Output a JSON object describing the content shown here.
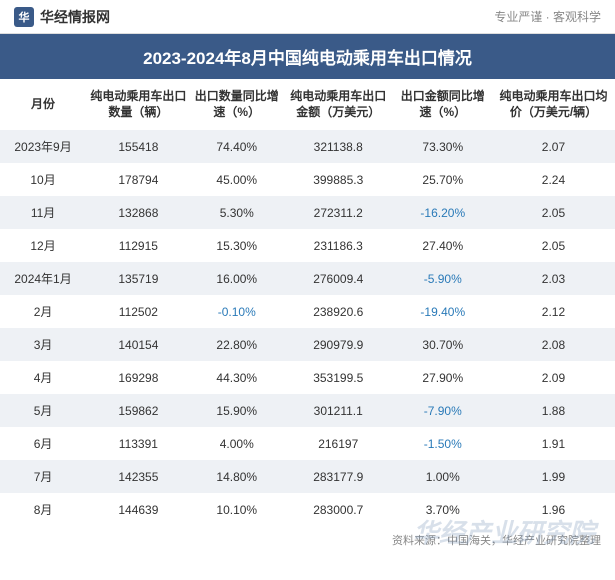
{
  "header": {
    "logo_char": "华",
    "logo_text": "华经情报网",
    "tagline": "专业严谨 · 客观科学"
  },
  "title": "2023-2024年8月中国纯电动乘用车出口情况",
  "table": {
    "columns": [
      "月份",
      "纯电动乘用车出口数量（辆）",
      "出口数量同比增速（%）",
      "纯电动乘用车出口金额（万美元）",
      "出口金额同比增速（%）",
      "纯电动乘用车出口均价（万美元/辆）"
    ],
    "rows": [
      {
        "month": "2023年9月",
        "qty": "155418",
        "qty_yoy": "74.40%",
        "qty_yoy_neg": false,
        "amt": "321138.8",
        "amt_yoy": "73.30%",
        "amt_yoy_neg": false,
        "avg": "2.07"
      },
      {
        "month": "10月",
        "qty": "178794",
        "qty_yoy": "45.00%",
        "qty_yoy_neg": false,
        "amt": "399885.3",
        "amt_yoy": "25.70%",
        "amt_yoy_neg": false,
        "avg": "2.24"
      },
      {
        "month": "11月",
        "qty": "132868",
        "qty_yoy": "5.30%",
        "qty_yoy_neg": false,
        "amt": "272311.2",
        "amt_yoy": "-16.20%",
        "amt_yoy_neg": true,
        "avg": "2.05"
      },
      {
        "month": "12月",
        "qty": "112915",
        "qty_yoy": "15.30%",
        "qty_yoy_neg": false,
        "amt": "231186.3",
        "amt_yoy": "27.40%",
        "amt_yoy_neg": false,
        "avg": "2.05"
      },
      {
        "month": "2024年1月",
        "qty": "135719",
        "qty_yoy": "16.00%",
        "qty_yoy_neg": false,
        "amt": "276009.4",
        "amt_yoy": "-5.90%",
        "amt_yoy_neg": true,
        "avg": "2.03"
      },
      {
        "month": "2月",
        "qty": "112502",
        "qty_yoy": "-0.10%",
        "qty_yoy_neg": true,
        "amt": "238920.6",
        "amt_yoy": "-19.40%",
        "amt_yoy_neg": true,
        "avg": "2.12"
      },
      {
        "month": "3月",
        "qty": "140154",
        "qty_yoy": "22.80%",
        "qty_yoy_neg": false,
        "amt": "290979.9",
        "amt_yoy": "30.70%",
        "amt_yoy_neg": false,
        "avg": "2.08"
      },
      {
        "month": "4月",
        "qty": "169298",
        "qty_yoy": "44.30%",
        "qty_yoy_neg": false,
        "amt": "353199.5",
        "amt_yoy": "27.90%",
        "amt_yoy_neg": false,
        "avg": "2.09"
      },
      {
        "month": "5月",
        "qty": "159862",
        "qty_yoy": "15.90%",
        "qty_yoy_neg": false,
        "amt": "301211.1",
        "amt_yoy": "-7.90%",
        "amt_yoy_neg": true,
        "avg": "1.88"
      },
      {
        "month": "6月",
        "qty": "113391",
        "qty_yoy": "4.00%",
        "qty_yoy_neg": false,
        "amt": "216197",
        "amt_yoy": "-1.50%",
        "amt_yoy_neg": true,
        "avg": "1.91"
      },
      {
        "month": "7月",
        "qty": "142355",
        "qty_yoy": "14.80%",
        "qty_yoy_neg": false,
        "amt": "283177.9",
        "amt_yoy": "1.00%",
        "amt_yoy_neg": false,
        "avg": "1.99"
      },
      {
        "month": "8月",
        "qty": "144639",
        "qty_yoy": "10.10%",
        "qty_yoy_neg": false,
        "amt": "283000.7",
        "amt_yoy": "3.70%",
        "amt_yoy_neg": false,
        "avg": "1.96"
      }
    ]
  },
  "source": "资料来源：中国海关，华经产业研究院整理",
  "watermark": "华经产业研究院",
  "colors": {
    "header_bg": "#3a5a88",
    "row_odd_bg": "#eef1f5",
    "row_even_bg": "#ffffff",
    "negative_text": "#2a7ab8",
    "normal_text": "#333333",
    "muted_text": "#888888"
  }
}
